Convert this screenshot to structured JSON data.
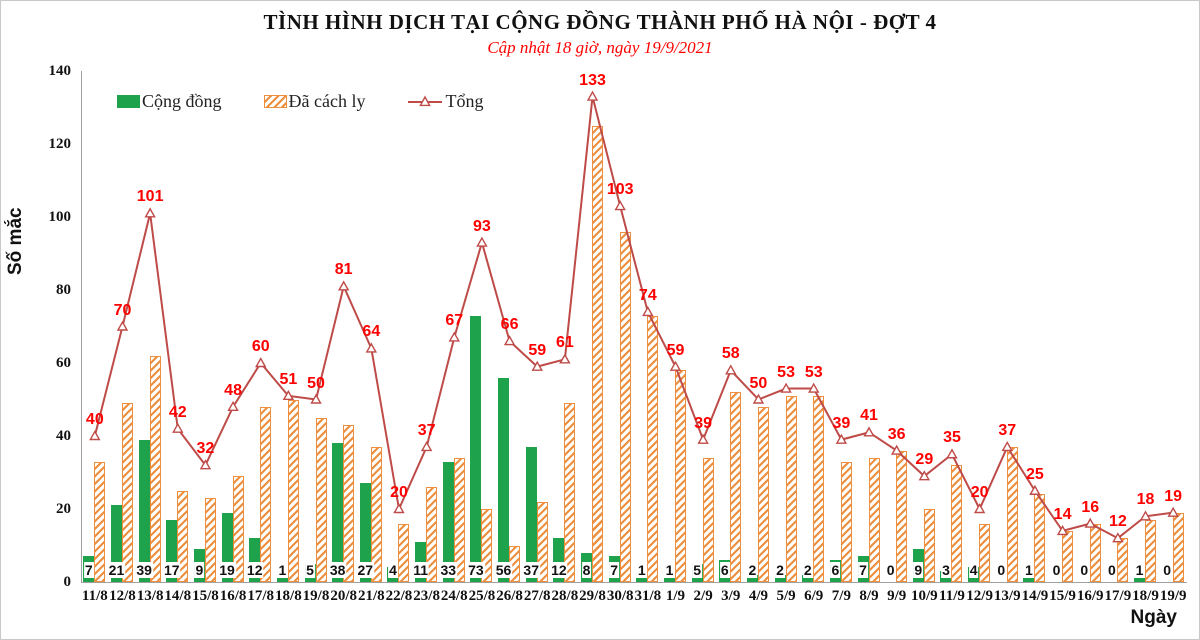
{
  "title": "TÌNH HÌNH DỊCH TẠI CỘNG ĐỒNG THÀNH PHỐ HÀ NỘI - ĐỢT 4",
  "subtitle": "Cập nhật 18 giờ, ngày 19/9/2021",
  "colors": {
    "community_green": "#1fa24c",
    "isolated_orange": "#ee8f3f",
    "total_line_red": "#be4b48",
    "data_label_red": "#fe0000",
    "axis_gray": "#a0a0a0"
  },
  "chart_data": {
    "type": "bar",
    "title": "TÌNH HÌNH DỊCH TẠI CỘNG ĐỒNG THÀNH PHỐ HÀ NỘI - ĐỢT 4",
    "subtitle": "Cập nhật 18 giờ, ngày 19/9/2021",
    "xlabel": "Ngày",
    "ylabel": "Số mắc",
    "ylim": [
      0,
      140
    ],
    "yticks": [
      0,
      20,
      40,
      60,
      80,
      100,
      120,
      140
    ],
    "grid": false,
    "legend_position": "top-left",
    "categories": [
      "11/8",
      "12/8",
      "13/8",
      "14/8",
      "15/8",
      "16/8",
      "17/8",
      "18/8",
      "19/8",
      "20/8",
      "21/8",
      "22/8",
      "23/8",
      "24/8",
      "25/8",
      "26/8",
      "27/8",
      "28/8",
      "29/8",
      "30/8",
      "31/8",
      "1/9",
      "2/9",
      "3/9",
      "4/9",
      "5/9",
      "6/9",
      "7/9",
      "8/9",
      "9/9",
      "10/9",
      "11/9",
      "12/9",
      "13/9",
      "14/9",
      "15/9",
      "16/9",
      "17/9",
      "18/9",
      "19/9"
    ],
    "series": [
      {
        "name": "Cộng đồng",
        "type": "bar",
        "style": "solid",
        "color": "#1fa24c",
        "values": [
          7,
          21,
          39,
          17,
          9,
          19,
          12,
          1,
          5,
          38,
          27,
          4,
          11,
          33,
          73,
          56,
          37,
          12,
          8,
          7,
          1,
          1,
          5,
          6,
          2,
          2,
          2,
          6,
          7,
          0,
          9,
          3,
          4,
          0,
          1,
          0,
          0,
          0,
          1,
          0
        ]
      },
      {
        "name": "Đã cách ly",
        "type": "bar",
        "style": "hatched",
        "color": "#ee8f3f",
        "values": [
          33,
          49,
          62,
          25,
          23,
          29,
          48,
          50,
          45,
          43,
          37,
          16,
          26,
          34,
          20,
          10,
          22,
          49,
          125,
          96,
          73,
          58,
          34,
          52,
          48,
          51,
          51,
          33,
          34,
          36,
          20,
          32,
          16,
          37,
          24,
          14,
          16,
          12,
          17,
          19
        ]
      },
      {
        "name": "Tổng",
        "type": "line",
        "marker": "triangle-open",
        "color": "#be4b48",
        "values": [
          40,
          70,
          101,
          42,
          32,
          48,
          60,
          51,
          50,
          81,
          64,
          20,
          37,
          67,
          93,
          66,
          59,
          61,
          133,
          103,
          74,
          59,
          39,
          58,
          50,
          53,
          53,
          39,
          41,
          36,
          29,
          35,
          20,
          37,
          25,
          14,
          16,
          12,
          18,
          19
        ]
      }
    ]
  }
}
